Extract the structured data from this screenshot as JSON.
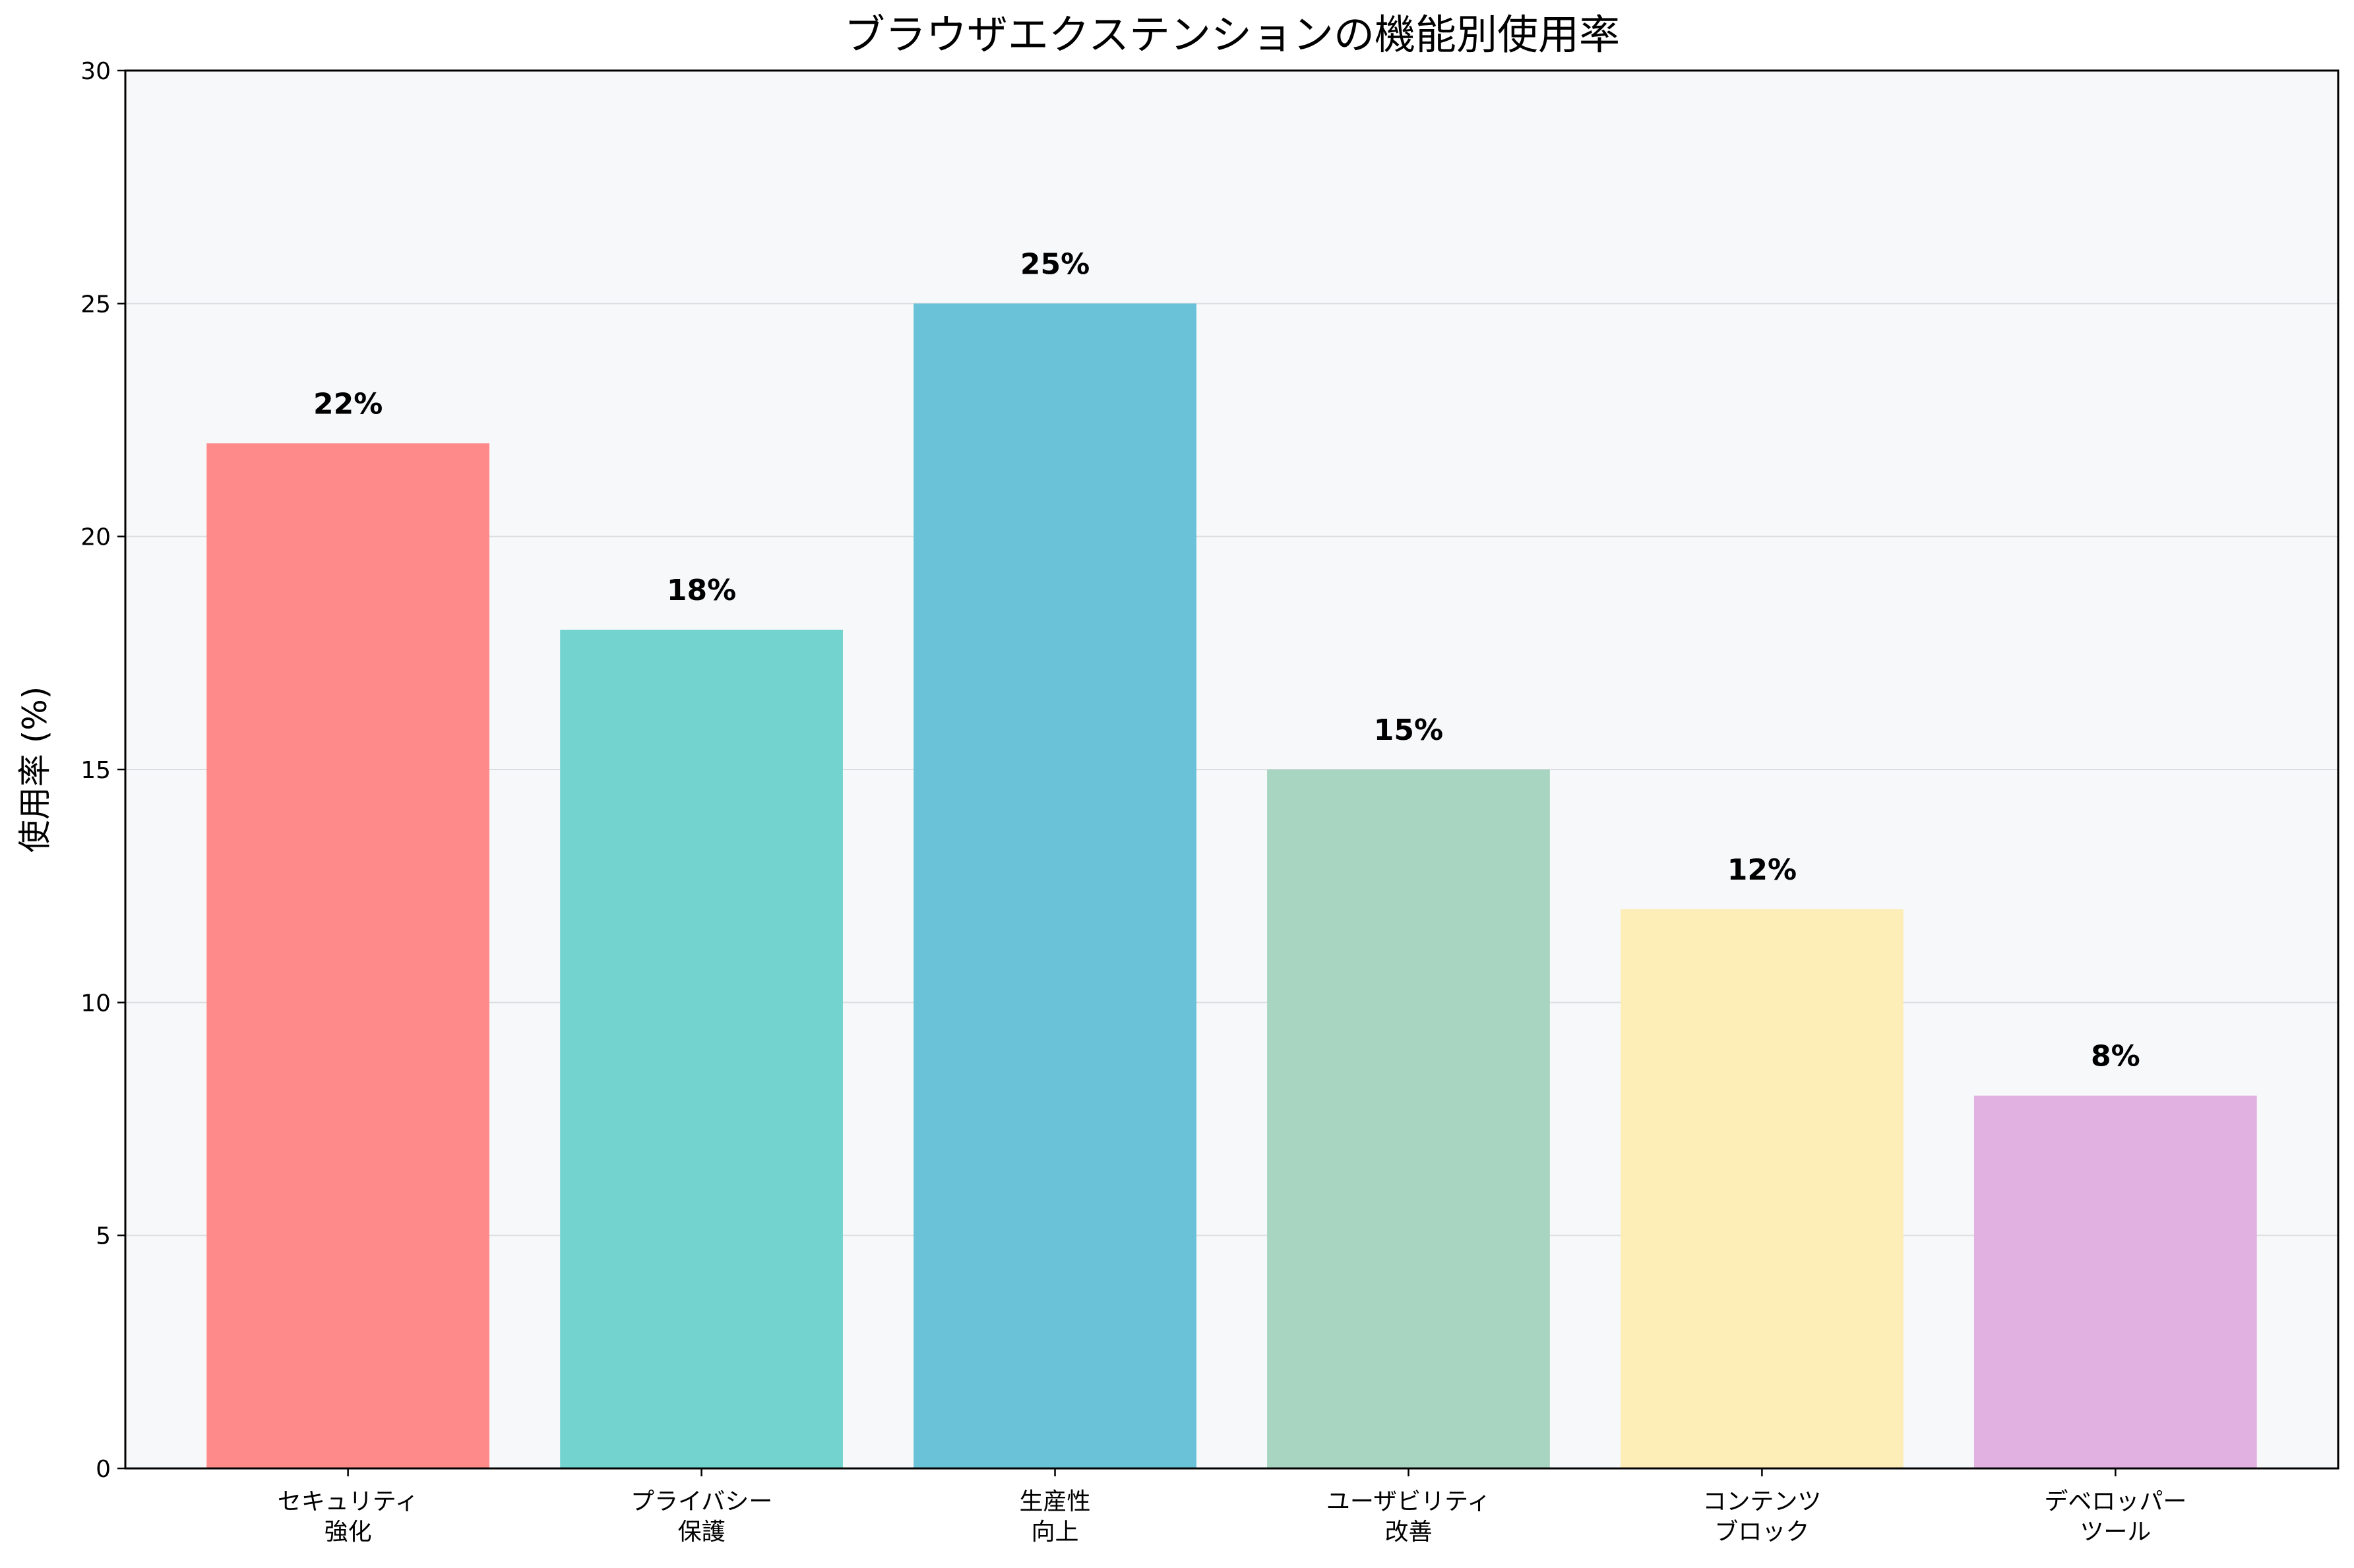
{
  "chart_data": {
    "type": "bar",
    "title": "ブラウザエクステンションの機能別使用率",
    "xlabel": "",
    "ylabel": "使用率 (%)",
    "ylim": [
      0,
      30
    ],
    "yticks": [
      "0",
      "5",
      "10",
      "15",
      "20",
      "25",
      "30"
    ],
    "grid": "horizontal",
    "categories": [
      [
        "セキュリティ",
        "強化"
      ],
      [
        "プライバシー",
        "保護"
      ],
      [
        "生産性",
        "向上"
      ],
      [
        "ユーザビリティ",
        "改善"
      ],
      [
        "コンテンツ",
        "ブロック"
      ],
      [
        "デベロッパー",
        "ツール"
      ]
    ],
    "values": [
      22,
      18,
      25,
      15,
      12,
      8
    ],
    "data_labels": [
      "22%",
      "18%",
      "25%",
      "15%",
      "12%",
      "8%"
    ],
    "colors": [
      "#FF8A8A",
      "#73D4CF",
      "#69C2D8",
      "#A8D5C2",
      "#FDEDB6",
      "#E1B2E1"
    ],
    "plot_background": "#F7F8FA"
  }
}
